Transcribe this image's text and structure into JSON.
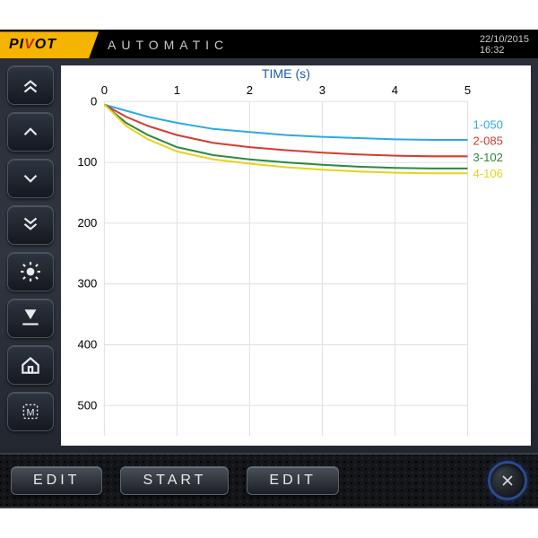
{
  "brand": {
    "pre": "PI",
    "mid": "V",
    "post": "OT"
  },
  "mode": "AUTOMATIC",
  "date": "22/10/2015",
  "time": "16:32",
  "chart": {
    "type": "line",
    "title": "TIME (s)",
    "title_color": "#1d5aaa",
    "title_fontsize": 14,
    "background_color": "#ffffff",
    "grid_color": "#e0e0e0",
    "tick_color": "#000000",
    "tick_fontsize": 13,
    "x": {
      "min": 0,
      "max": 5,
      "ticks": [
        0,
        1,
        2,
        3,
        4,
        5
      ]
    },
    "y": {
      "min": 0,
      "max": 550,
      "ticks": [
        0,
        100,
        200,
        300,
        400,
        500
      ],
      "inverted": true
    },
    "line_width": 2,
    "series": [
      {
        "label": "1-050",
        "color": "#2aa9e8",
        "points": [
          [
            0.0,
            5
          ],
          [
            0.15,
            10
          ],
          [
            0.3,
            15
          ],
          [
            0.6,
            25
          ],
          [
            1.0,
            35
          ],
          [
            1.5,
            45
          ],
          [
            2.0,
            50
          ],
          [
            2.5,
            55
          ],
          [
            3.0,
            58
          ],
          [
            3.5,
            60
          ],
          [
            4.0,
            62
          ],
          [
            4.5,
            63
          ],
          [
            5.0,
            63
          ]
        ]
      },
      {
        "label": "2-085",
        "color": "#d73a2f",
        "points": [
          [
            0.0,
            5
          ],
          [
            0.15,
            15
          ],
          [
            0.3,
            25
          ],
          [
            0.6,
            40
          ],
          [
            1.0,
            55
          ],
          [
            1.5,
            68
          ],
          [
            2.0,
            75
          ],
          [
            2.5,
            80
          ],
          [
            3.0,
            84
          ],
          [
            3.5,
            87
          ],
          [
            4.0,
            89
          ],
          [
            4.5,
            90
          ],
          [
            5.0,
            90
          ]
        ]
      },
      {
        "label": "3-102",
        "color": "#2b8a3e",
        "points": [
          [
            0.0,
            5
          ],
          [
            0.15,
            20
          ],
          [
            0.3,
            35
          ],
          [
            0.6,
            55
          ],
          [
            1.0,
            75
          ],
          [
            1.5,
            88
          ],
          [
            2.0,
            95
          ],
          [
            2.5,
            100
          ],
          [
            3.0,
            104
          ],
          [
            3.5,
            107
          ],
          [
            4.0,
            109
          ],
          [
            4.5,
            110
          ],
          [
            5.0,
            110
          ]
        ]
      },
      {
        "label": "4-106",
        "color": "#e8d21b",
        "points": [
          [
            0.0,
            5
          ],
          [
            0.15,
            22
          ],
          [
            0.3,
            40
          ],
          [
            0.6,
            62
          ],
          [
            1.0,
            82
          ],
          [
            1.5,
            95
          ],
          [
            2.0,
            102
          ],
          [
            2.5,
            108
          ],
          [
            3.0,
            112
          ],
          [
            3.5,
            115
          ],
          [
            4.0,
            117
          ],
          [
            4.5,
            118
          ],
          [
            5.0,
            118
          ]
        ]
      }
    ]
  },
  "buttons": {
    "edit1": "EDIT",
    "start": "START",
    "edit2": "EDIT"
  }
}
